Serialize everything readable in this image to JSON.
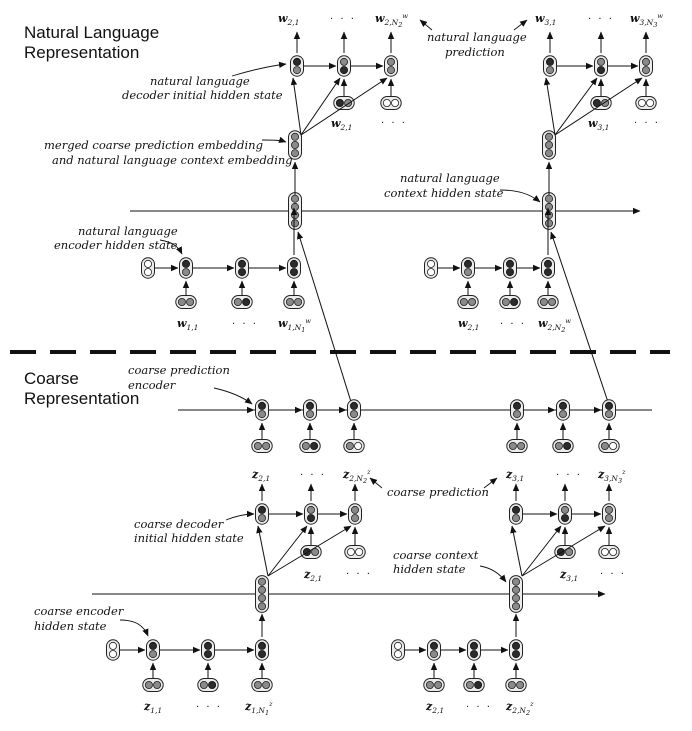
{
  "sections": {
    "natural_language_title": [
      "Natural Language",
      "Representation"
    ],
    "coarse_title": [
      "Coarse",
      "Representation"
    ]
  },
  "annotations": {
    "nl_decoder_initial": [
      "natural language",
      "decoder initial hidden state"
    ],
    "merged_embedding": [
      "merged coarse prediction embedding",
      "and natural language context embedding"
    ],
    "nl_encoder": [
      "natural language",
      "encoder hidden state"
    ],
    "nl_prediction": [
      "natural language",
      "prediction"
    ],
    "nl_context": [
      "natural language",
      "context hidden state"
    ],
    "coarse_pred_encoder": [
      "coarse prediction",
      "encoder"
    ],
    "coarse_prediction": "coarse prediction",
    "coarse_decoder_initial": [
      "coarse decoder",
      "initial hidden state"
    ],
    "coarse_context": [
      "coarse context",
      "hidden state"
    ],
    "coarse_encoder": [
      "coarse encoder",
      "hidden state"
    ]
  },
  "tokens": {
    "w21_top": {
      "base": "w",
      "sub": "2,1"
    },
    "w2N_top": {
      "base": "w",
      "sub": "2,N",
      "subsub": "2",
      "sup": "w"
    },
    "w31_top": {
      "base": "w",
      "sub": "3,1"
    },
    "w3N_top": {
      "base": "w",
      "sub": "3,N",
      "subsub": "3",
      "sup": "w"
    },
    "w21_dec": {
      "base": "w",
      "sub": "2,1"
    },
    "w31_dec": {
      "base": "w",
      "sub": "3,1"
    },
    "w11_in": {
      "base": "w",
      "sub": "1,1"
    },
    "w1N_in": {
      "base": "w",
      "sub": "1,N",
      "subsub": "1",
      "sup": "w"
    },
    "w21_in": {
      "base": "w",
      "sub": "2,1"
    },
    "w2N_in": {
      "base": "w",
      "sub": "2,N",
      "subsub": "2",
      "sup": "w"
    },
    "z21_top": {
      "base": "z",
      "sub": "2,1"
    },
    "z2N_top": {
      "base": "z",
      "sub": "2,N",
      "subsub": "2",
      "sup": "z"
    },
    "z31_top": {
      "base": "z",
      "sub": "3,1"
    },
    "z3N_top": {
      "base": "z",
      "sub": "3,N",
      "subsub": "3",
      "sup": "z"
    },
    "z21_dec": {
      "base": "z",
      "sub": "2,1"
    },
    "z31_dec": {
      "base": "z",
      "sub": "3,1"
    },
    "z11_in": {
      "base": "z",
      "sub": "1,1"
    },
    "z1N_in": {
      "base": "z",
      "sub": "1,N",
      "subsub": "1",
      "sup": "z"
    },
    "z21_in": {
      "base": "z",
      "sub": "2,1"
    },
    "z2N_in": {
      "base": "z",
      "sub": "2,N",
      "subsub": "2",
      "sup": "z"
    }
  },
  "ellipsis": "· · ·"
}
